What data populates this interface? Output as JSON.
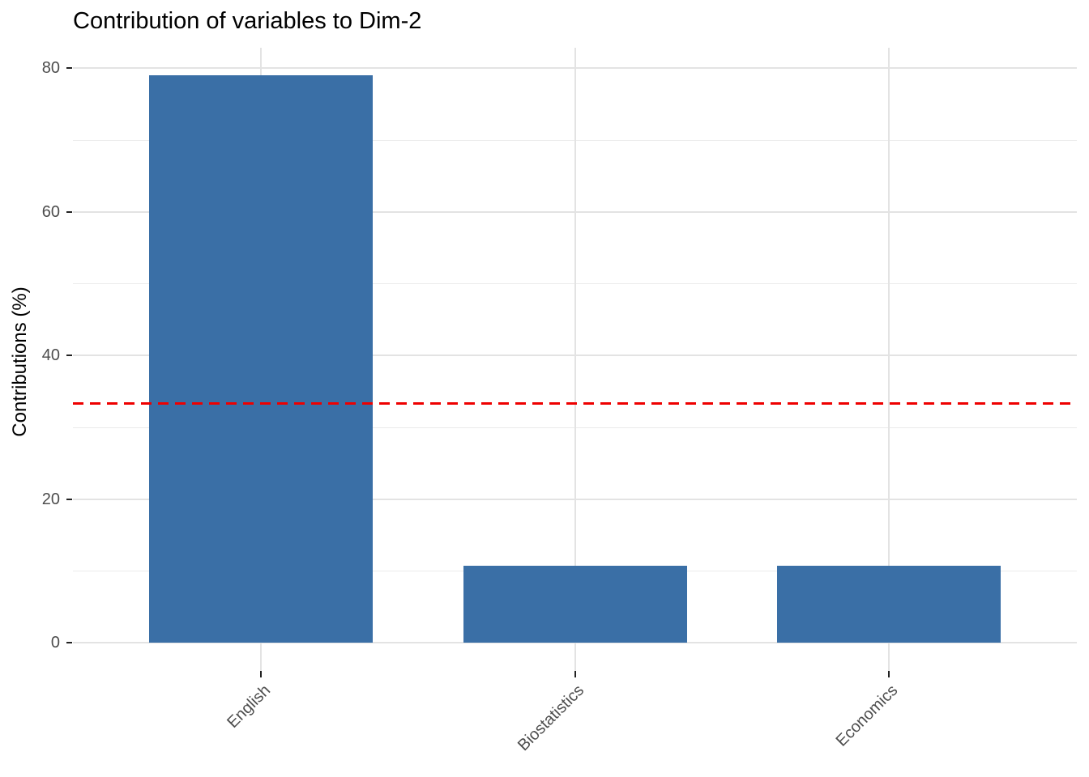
{
  "chart_data": {
    "type": "bar",
    "title": "Contribution of variables to Dim-2",
    "categories": [
      "English",
      "Biostatistics",
      "Economics"
    ],
    "values": [
      79,
      10.7,
      10.7
    ],
    "xlabel": "",
    "ylabel": "Contributions (%)",
    "ylim": [
      0,
      82.9
    ],
    "y_ticks": [
      0,
      20,
      40,
      60,
      80
    ],
    "y_minor_ticks": [
      10,
      30,
      50,
      70
    ],
    "reference_line": {
      "value": 33.33,
      "style": "dashed",
      "color": "#ee0000"
    },
    "bar_color": "#3a6fa6",
    "grid": true,
    "legend": "none"
  }
}
